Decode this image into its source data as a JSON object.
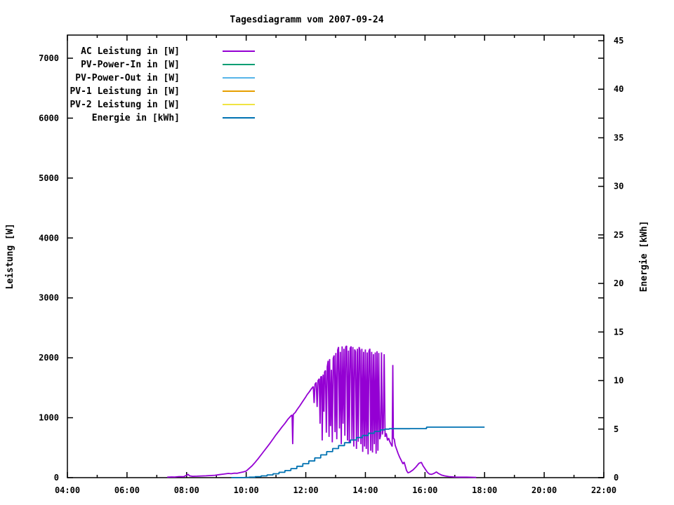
{
  "chart_data": {
    "type": "line",
    "title": "Tagesdiagramm vom 2007-09-24",
    "x_axis": {
      "unit": "time",
      "min_hour": 4,
      "max_hour": 22,
      "major_tick_labels": [
        "04:00",
        "06:00",
        "08:00",
        "10:00",
        "12:00",
        "14:00",
        "16:00",
        "18:00",
        "20:00",
        "22:00"
      ],
      "major_tick_hours": [
        4,
        6,
        8,
        10,
        12,
        14,
        16,
        18,
        20,
        22
      ],
      "minor_tick_hours": [
        5,
        7,
        9,
        11,
        13,
        15,
        17,
        19,
        21
      ],
      "grid": false
    },
    "y_left_axis": {
      "label": "Leistung [W]",
      "min": 0,
      "max": 7380,
      "tick_values": [
        0,
        1000,
        2000,
        3000,
        4000,
        5000,
        6000,
        7000
      ],
      "tick_labels": [
        "0",
        "1000",
        "2000",
        "3000",
        "4000",
        "5000",
        "6000",
        "7000"
      ]
    },
    "y_right_axis": {
      "label": "Energie [kWh]",
      "min": 0,
      "max": 45.6,
      "tick_values": [
        0,
        5,
        10,
        15,
        20,
        25,
        30,
        35,
        40,
        45
      ],
      "tick_labels": [
        "0",
        "5",
        "10",
        "15",
        "20",
        "25",
        "30",
        "35",
        "40",
        "45"
      ]
    },
    "legend": {
      "position": "top-left-inside",
      "entries": [
        {
          "label": "AC Leistung in [W]",
          "color": "#9400D3"
        },
        {
          "label": "PV-Power-In in [W]",
          "color": "#009E73"
        },
        {
          "label": "PV-Power-Out in [W]",
          "color": "#56B4E9"
        },
        {
          "label": "PV-1 Leistung in [W]",
          "color": "#E69F00"
        },
        {
          "label": "PV-2 Leistung in [W]",
          "color": "#F0E442"
        },
        {
          "label": "Energie in [kWh]",
          "color": "#0072B2"
        }
      ]
    },
    "series": [
      {
        "name": "AC Leistung in [W]",
        "axis": "left",
        "color": "#9400D3",
        "style": "line",
        "points": [
          [
            7.35,
            8
          ],
          [
            7.5,
            12
          ],
          [
            7.6,
            10
          ],
          [
            7.75,
            18
          ],
          [
            7.9,
            15
          ],
          [
            8.0,
            40
          ],
          [
            8.05,
            55
          ],
          [
            8.1,
            30
          ],
          [
            8.2,
            22
          ],
          [
            8.35,
            25
          ],
          [
            8.5,
            28
          ],
          [
            8.65,
            30
          ],
          [
            8.8,
            35
          ],
          [
            8.95,
            40
          ],
          [
            9.1,
            50
          ],
          [
            9.25,
            60
          ],
          [
            9.4,
            70
          ],
          [
            9.5,
            65
          ],
          [
            9.6,
            75
          ],
          [
            9.7,
            72
          ],
          [
            9.8,
            85
          ],
          [
            9.9,
            95
          ],
          [
            10.0,
            110
          ],
          [
            10.1,
            155
          ],
          [
            10.2,
            200
          ],
          [
            10.3,
            255
          ],
          [
            10.4,
            315
          ],
          [
            10.5,
            380
          ],
          [
            10.6,
            445
          ],
          [
            10.7,
            510
          ],
          [
            10.8,
            575
          ],
          [
            10.9,
            645
          ],
          [
            11.0,
            715
          ],
          [
            11.1,
            780
          ],
          [
            11.2,
            845
          ],
          [
            11.3,
            905
          ],
          [
            11.4,
            975
          ],
          [
            11.5,
            1030
          ],
          [
            11.54,
            1045
          ],
          [
            11.56,
            560
          ],
          [
            11.58,
            1055
          ],
          [
            11.65,
            1090
          ],
          [
            11.7,
            1130
          ],
          [
            11.8,
            1200
          ],
          [
            11.9,
            1275
          ],
          [
            12.0,
            1350
          ],
          [
            12.05,
            1390
          ],
          [
            12.1,
            1420
          ],
          [
            12.15,
            1455
          ],
          [
            12.2,
            1490
          ],
          [
            12.25,
            1520
          ],
          [
            12.28,
            1245
          ],
          [
            12.31,
            1560
          ],
          [
            12.35,
            1590
          ],
          [
            12.38,
            1180
          ],
          [
            12.41,
            1620
          ],
          [
            12.45,
            1650
          ],
          [
            12.48,
            900
          ],
          [
            12.5,
            1680
          ],
          [
            12.53,
            1690
          ],
          [
            12.55,
            620
          ],
          [
            12.58,
            1720
          ],
          [
            12.61,
            1100
          ],
          [
            12.63,
            1760
          ],
          [
            12.66,
            1790
          ],
          [
            12.69,
            750
          ],
          [
            12.72,
            1850
          ],
          [
            12.75,
            1950
          ],
          [
            12.78,
            680
          ],
          [
            12.8,
            1980
          ],
          [
            12.83,
            860
          ],
          [
            12.86,
            1800
          ],
          [
            12.89,
            590
          ],
          [
            12.92,
            1990
          ],
          [
            12.95,
            2040
          ],
          [
            12.98,
            760
          ],
          [
            13.01,
            2080
          ],
          [
            13.04,
            640
          ],
          [
            13.07,
            2130
          ],
          [
            13.1,
            2180
          ],
          [
            13.13,
            820
          ],
          [
            13.16,
            2100
          ],
          [
            13.19,
            560
          ],
          [
            13.22,
            2190
          ],
          [
            13.25,
            900
          ],
          [
            13.28,
            2150
          ],
          [
            13.31,
            700
          ],
          [
            13.34,
            2180
          ],
          [
            13.37,
            2200
          ],
          [
            13.4,
            620
          ],
          [
            13.43,
            2120
          ],
          [
            13.46,
            580
          ],
          [
            13.49,
            2160
          ],
          [
            13.52,
            2190
          ],
          [
            13.55,
            640
          ],
          [
            13.58,
            2180
          ],
          [
            13.61,
            520
          ],
          [
            13.64,
            2140
          ],
          [
            13.67,
            2100
          ],
          [
            13.7,
            480
          ],
          [
            13.73,
            2150
          ],
          [
            13.76,
            600
          ],
          [
            13.79,
            2180
          ],
          [
            13.82,
            2120
          ],
          [
            13.85,
            560
          ],
          [
            13.88,
            2150
          ],
          [
            13.91,
            430
          ],
          [
            13.94,
            2100
          ],
          [
            13.97,
            520
          ],
          [
            14.0,
            2140
          ],
          [
            14.03,
            480
          ],
          [
            14.06,
            2090
          ],
          [
            14.09,
            390
          ],
          [
            14.12,
            2110
          ],
          [
            14.15,
            2150
          ],
          [
            14.18,
            450
          ],
          [
            14.21,
            2100
          ],
          [
            14.24,
            420
          ],
          [
            14.27,
            2060
          ],
          [
            14.3,
            560
          ],
          [
            14.33,
            2090
          ],
          [
            14.36,
            400
          ],
          [
            14.39,
            2110
          ],
          [
            14.42,
            450
          ],
          [
            14.45,
            2080
          ],
          [
            14.48,
            640
          ],
          [
            14.51,
            700
          ],
          [
            14.54,
            2090
          ],
          [
            14.57,
            720
          ],
          [
            14.6,
            820
          ],
          [
            14.63,
            2060
          ],
          [
            14.66,
            680
          ],
          [
            14.7,
            740
          ],
          [
            14.74,
            620
          ],
          [
            14.78,
            660
          ],
          [
            14.82,
            600
          ],
          [
            14.86,
            560
          ],
          [
            14.9,
            520
          ],
          [
            14.92,
            1880
          ],
          [
            14.94,
            660
          ],
          [
            14.97,
            640
          ],
          [
            15.0,
            540
          ],
          [
            15.05,
            470
          ],
          [
            15.1,
            400
          ],
          [
            15.15,
            340
          ],
          [
            15.2,
            290
          ],
          [
            15.26,
            230
          ],
          [
            15.3,
            260
          ],
          [
            15.33,
            210
          ],
          [
            15.38,
            120
          ],
          [
            15.43,
            80
          ],
          [
            15.5,
            95
          ],
          [
            15.6,
            130
          ],
          [
            15.7,
            180
          ],
          [
            15.8,
            240
          ],
          [
            15.88,
            255
          ],
          [
            15.93,
            200
          ],
          [
            16.0,
            150
          ],
          [
            16.08,
            90
          ],
          [
            16.15,
            60
          ],
          [
            16.22,
            55
          ],
          [
            16.3,
            70
          ],
          [
            16.38,
            95
          ],
          [
            16.45,
            70
          ],
          [
            16.55,
            45
          ],
          [
            16.65,
            30
          ],
          [
            16.8,
            18
          ],
          [
            17.0,
            10
          ],
          [
            17.2,
            8
          ],
          [
            17.4,
            8
          ],
          [
            17.6,
            6
          ],
          [
            17.72,
            4
          ]
        ]
      },
      {
        "name": "PV-Power-In in [W]",
        "axis": "left",
        "color": "#009E73",
        "style": "line",
        "points": []
      },
      {
        "name": "PV-Power-Out in [W]",
        "axis": "left",
        "color": "#56B4E9",
        "style": "line",
        "points": []
      },
      {
        "name": "PV-1 Leistung in [W]",
        "axis": "left",
        "color": "#E69F00",
        "style": "line",
        "points": []
      },
      {
        "name": "PV-2 Leistung in [W]",
        "axis": "left",
        "color": "#F0E442",
        "style": "line",
        "points": []
      },
      {
        "name": "Energie in [kWh]",
        "axis": "right",
        "color": "#0072B2",
        "style": "step",
        "points": [
          [
            9.5,
            0.01
          ],
          [
            9.95,
            0.02
          ],
          [
            10.1,
            0.05
          ],
          [
            10.3,
            0.1
          ],
          [
            10.5,
            0.18
          ],
          [
            10.7,
            0.28
          ],
          [
            10.9,
            0.4
          ],
          [
            11.1,
            0.55
          ],
          [
            11.3,
            0.73
          ],
          [
            11.5,
            0.93
          ],
          [
            11.7,
            1.17
          ],
          [
            11.9,
            1.44
          ],
          [
            12.1,
            1.72
          ],
          [
            12.3,
            2.03
          ],
          [
            12.5,
            2.35
          ],
          [
            12.7,
            2.68
          ],
          [
            12.9,
            3.0
          ],
          [
            13.1,
            3.3
          ],
          [
            13.3,
            3.6
          ],
          [
            13.5,
            3.88
          ],
          [
            13.7,
            4.13
          ],
          [
            13.9,
            4.35
          ],
          [
            14.1,
            4.57
          ],
          [
            14.3,
            4.76
          ],
          [
            14.5,
            4.92
          ],
          [
            14.65,
            5.0
          ],
          [
            14.8,
            5.04
          ],
          [
            15.5,
            5.05
          ],
          [
            16.0,
            5.05
          ],
          [
            16.05,
            5.2
          ],
          [
            17.0,
            5.2
          ],
          [
            18.0,
            5.2
          ]
        ]
      }
    ],
    "plot_notes": "Only AC Leistung and Energie series have visible data; the four PV series appear in the legend only."
  }
}
